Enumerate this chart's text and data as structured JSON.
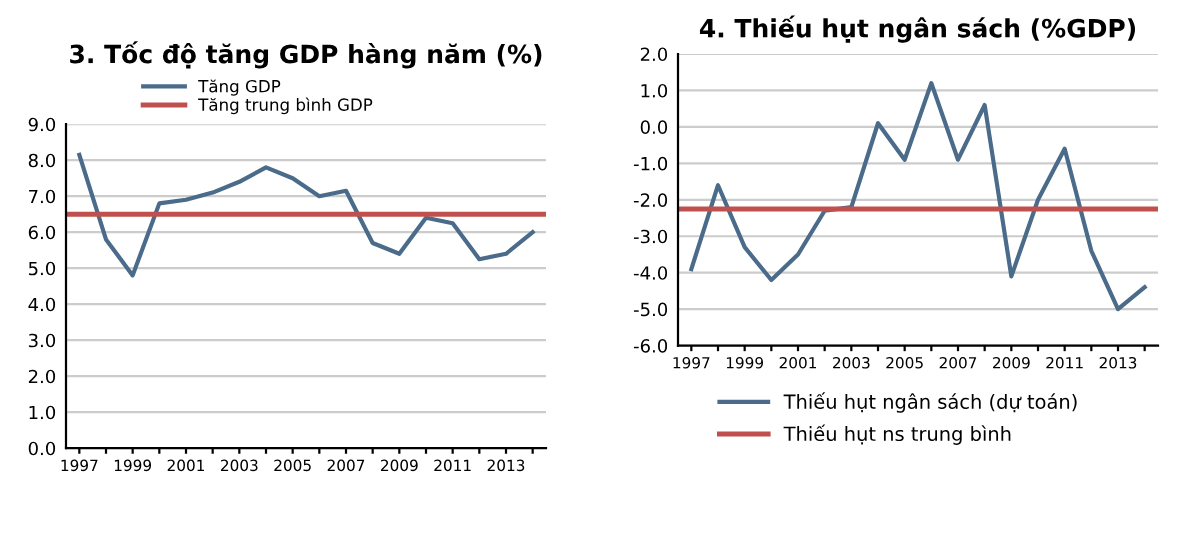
{
  "chart_data": [
    {
      "type": "line",
      "title": "3. Tốc độ tăng GDP hàng năm (%)",
      "categories": [
        "1997",
        null,
        "1999",
        null,
        "2001",
        null,
        "2003",
        null,
        "2005",
        null,
        "2007",
        null,
        "2009",
        null,
        "2011",
        null,
        "2013",
        null
      ],
      "series": [
        {
          "name": "Tăng GDP",
          "color": "#4a6b8a",
          "values": [
            8.15,
            5.8,
            4.8,
            6.8,
            6.9,
            7.1,
            7.4,
            7.8,
            7.5,
            7.0,
            7.15,
            5.7,
            5.4,
            6.4,
            6.25,
            5.25,
            5.4,
            6.0
          ]
        }
      ],
      "ref_lines": [
        {
          "axis": "y",
          "value": 6.5,
          "label": "Tăng trung bình GDP",
          "color": "#c0504d"
        }
      ],
      "ylim": [
        0,
        9
      ],
      "yticks": [
        {
          "value": 0,
          "label": "0.0"
        },
        {
          "value": 1,
          "label": "1.0"
        },
        {
          "value": 2,
          "label": "2.0"
        },
        {
          "value": 3,
          "label": "3.0"
        },
        {
          "value": 4,
          "label": "4.0"
        },
        {
          "value": 5,
          "label": "5.0"
        },
        {
          "value": 6,
          "label": "6.0"
        },
        {
          "value": 7,
          "label": "7.0"
        },
        {
          "value": 8,
          "label": "8.0"
        },
        {
          "value": 9,
          "label": "9.0"
        }
      ],
      "grid": "y",
      "legend": "top",
      "marker": "none",
      "line_style": "solid"
    },
    {
      "type": "line",
      "title": "4. Thiếu hụt ngân sách (%GDP)",
      "categories": [
        "1997",
        null,
        "1999",
        null,
        "2001",
        null,
        "2003",
        null,
        "2005",
        null,
        "2007",
        null,
        "2009",
        null,
        "2011",
        null,
        "2013",
        null
      ],
      "series": [
        {
          "name": "Thiếu hụt ngân sách (dự toán)",
          "color": "#4a6b8a",
          "values": [
            -3.9,
            -1.6,
            -3.3,
            -4.2,
            -3.5,
            -2.3,
            -2.2,
            0.1,
            -0.9,
            1.2,
            -0.9,
            0.6,
            -4.1,
            -2.0,
            -0.6,
            -3.4,
            -5.0,
            -4.4
          ]
        }
      ],
      "ref_lines": [
        {
          "axis": "y",
          "value": -2.25,
          "label": "Thiếu hụt ns trung bình",
          "color": "#c0504d"
        }
      ],
      "ylim": [
        -6,
        2
      ],
      "yticks": [
        {
          "value": -6,
          "label": "-6.0"
        },
        {
          "value": -5,
          "label": "-5.0"
        },
        {
          "value": -4,
          "label": "-4.0"
        },
        {
          "value": -3,
          "label": "-3.0"
        },
        {
          "value": -2,
          "label": "-2.0"
        },
        {
          "value": -1,
          "label": "-1.0"
        },
        {
          "value": 0,
          "label": "0.0"
        },
        {
          "value": 1,
          "label": "1.0"
        },
        {
          "value": 2,
          "label": "2.0"
        }
      ],
      "grid": "y",
      "legend": "bottom",
      "marker": "none",
      "line_style": "solid"
    }
  ]
}
